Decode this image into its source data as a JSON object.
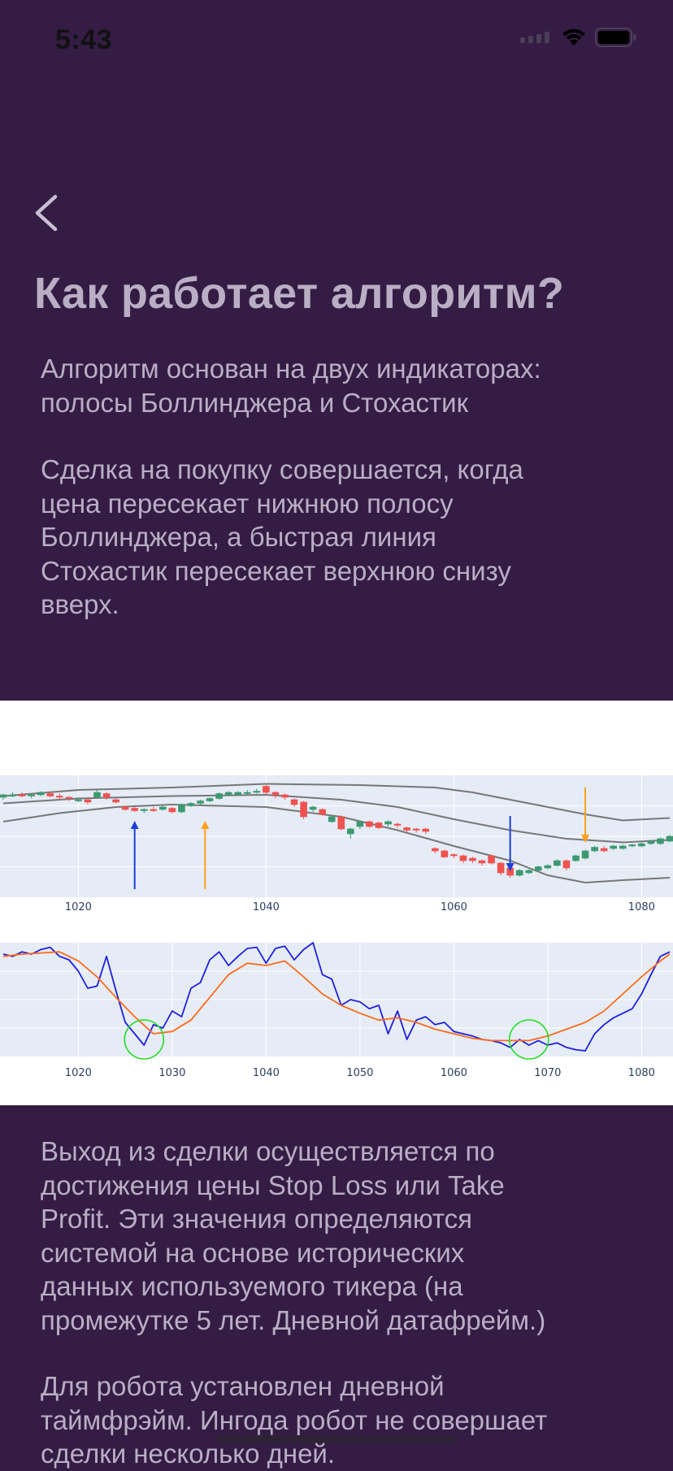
{
  "status_bar": {
    "time": "5:43",
    "icons": [
      "signal-icon",
      "wifi-icon",
      "battery-icon"
    ]
  },
  "nav": {
    "back_icon": "chevron-left-icon"
  },
  "page": {
    "title": "Как работает алгоритм?",
    "paragraph_1": "Алгоритм основан на двух индикаторах:\nполосы Боллинджера и Стохастик",
    "paragraph_2": "Сделка на покупку совершается, когда\nцена пересекает нижнюю полосу\nБоллинджера, а быстрая линия\nСтохастик пересекает верхнюю снизу\nвверх.",
    "paragraph_3": "Выход из сделки осуществляется по\nдостижения цены Stop Loss или Take\nProfit. Эти значения определяются\nсистемой на основе исторических\nданных используемого тикера (на\nпромежутке 5 лет. Дневной датафрейм.)",
    "paragraph_4": "Для робота установлен дневной\nтаймфрэйм. Ингода робот не совершает\nсделки несколько дней."
  },
  "colors": {
    "background": "#341c44",
    "text": "#b9aec4",
    "plot_bg": "#e5ecf6",
    "candle_up": "#3d9970",
    "candle_down": "#ef5350",
    "band": "#777777",
    "stoch_fast": "#1f1fe0",
    "stoch_slow": "#ff6a1a",
    "buy_arrow": "#1f3fd8",
    "sell_arrow": "#ff9f1a",
    "cross_marker": "#22dd22"
  },
  "chart_data": [
    {
      "type": "candlestick",
      "title": "",
      "x_ticks": [
        1020,
        1040,
        1060,
        1080
      ],
      "xlim": [
        1012,
        1083
      ],
      "ylim": [
        0,
        100
      ],
      "upper_band": [
        [
          1012,
          83
        ],
        [
          1020,
          88
        ],
        [
          1030,
          90
        ],
        [
          1040,
          93
        ],
        [
          1050,
          92
        ],
        [
          1058,
          90
        ],
        [
          1062,
          86
        ],
        [
          1066,
          80
        ],
        [
          1070,
          74
        ],
        [
          1074,
          68
        ],
        [
          1078,
          63
        ],
        [
          1083,
          65
        ]
      ],
      "middle_band": [
        [
          1012,
          77
        ],
        [
          1020,
          81
        ],
        [
          1030,
          83
        ],
        [
          1040,
          84
        ],
        [
          1048,
          80
        ],
        [
          1054,
          74
        ],
        [
          1060,
          64
        ],
        [
          1066,
          55
        ],
        [
          1072,
          48
        ],
        [
          1078,
          45
        ],
        [
          1083,
          47
        ]
      ],
      "lower_band": [
        [
          1012,
          62
        ],
        [
          1018,
          69
        ],
        [
          1024,
          74
        ],
        [
          1030,
          76
        ],
        [
          1040,
          74
        ],
        [
          1048,
          66
        ],
        [
          1054,
          55
        ],
        [
          1060,
          42
        ],
        [
          1066,
          30
        ],
        [
          1070,
          18
        ],
        [
          1074,
          12
        ],
        [
          1078,
          14
        ],
        [
          1083,
          16
        ]
      ],
      "candles": [
        {
          "x": 1012,
          "o": 82,
          "c": 84,
          "h": 85,
          "l": 80
        },
        {
          "x": 1013,
          "o": 83,
          "c": 84,
          "h": 86,
          "l": 82
        },
        {
          "x": 1014,
          "o": 84,
          "c": 83,
          "h": 86,
          "l": 82
        },
        {
          "x": 1015,
          "o": 83,
          "c": 84,
          "h": 85,
          "l": 81
        },
        {
          "x": 1016,
          "o": 84,
          "c": 86,
          "h": 87,
          "l": 83
        },
        {
          "x": 1017,
          "o": 85,
          "c": 83,
          "h": 87,
          "l": 82
        },
        {
          "x": 1018,
          "o": 83,
          "c": 82,
          "h": 85,
          "l": 80
        },
        {
          "x": 1019,
          "o": 82,
          "c": 81,
          "h": 83,
          "l": 79
        },
        {
          "x": 1020,
          "o": 80,
          "c": 80,
          "h": 82,
          "l": 78
        },
        {
          "x": 1021,
          "o": 80,
          "c": 78,
          "h": 81,
          "l": 76
        },
        {
          "x": 1022,
          "o": 82,
          "c": 86,
          "h": 88,
          "l": 81
        },
        {
          "x": 1023,
          "o": 85,
          "c": 82,
          "h": 86,
          "l": 80
        },
        {
          "x": 1024,
          "o": 80,
          "c": 78,
          "h": 81,
          "l": 77
        },
        {
          "x": 1025,
          "o": 74,
          "c": 72,
          "h": 75,
          "l": 71
        },
        {
          "x": 1026,
          "o": 73,
          "c": 71,
          "h": 74,
          "l": 70
        },
        {
          "x": 1027,
          "o": 71,
          "c": 72,
          "h": 73,
          "l": 69
        },
        {
          "x": 1028,
          "o": 72,
          "c": 71,
          "h": 74,
          "l": 70
        },
        {
          "x": 1029,
          "o": 72,
          "c": 74,
          "h": 75,
          "l": 71
        },
        {
          "x": 1030,
          "o": 73,
          "c": 70,
          "h": 74,
          "l": 69
        },
        {
          "x": 1031,
          "o": 70,
          "c": 76,
          "h": 77,
          "l": 69
        },
        {
          "x": 1032,
          "o": 75,
          "c": 77,
          "h": 78,
          "l": 74
        },
        {
          "x": 1033,
          "o": 77,
          "c": 79,
          "h": 80,
          "l": 76
        },
        {
          "x": 1034,
          "o": 79,
          "c": 81,
          "h": 82,
          "l": 78
        },
        {
          "x": 1035,
          "o": 81,
          "c": 85,
          "h": 86,
          "l": 80
        },
        {
          "x": 1036,
          "o": 84,
          "c": 86,
          "h": 87,
          "l": 83
        },
        {
          "x": 1037,
          "o": 84,
          "c": 86,
          "h": 87,
          "l": 83
        },
        {
          "x": 1038,
          "o": 85,
          "c": 86,
          "h": 88,
          "l": 84
        },
        {
          "x": 1039,
          "o": 86,
          "c": 87,
          "h": 89,
          "l": 85
        },
        {
          "x": 1040,
          "o": 91,
          "c": 86,
          "h": 92,
          "l": 84
        },
        {
          "x": 1041,
          "o": 86,
          "c": 84,
          "h": 87,
          "l": 81
        },
        {
          "x": 1042,
          "o": 84,
          "c": 82,
          "h": 85,
          "l": 80
        },
        {
          "x": 1043,
          "o": 80,
          "c": 76,
          "h": 81,
          "l": 74
        },
        {
          "x": 1044,
          "o": 78,
          "c": 66,
          "h": 79,
          "l": 64
        },
        {
          "x": 1045,
          "o": 72,
          "c": 74,
          "h": 75,
          "l": 70
        },
        {
          "x": 1046,
          "o": 72,
          "c": 68,
          "h": 73,
          "l": 67
        },
        {
          "x": 1047,
          "o": 62,
          "c": 66,
          "h": 67,
          "l": 61
        },
        {
          "x": 1048,
          "o": 66,
          "c": 56,
          "h": 67,
          "l": 55
        },
        {
          "x": 1049,
          "o": 52,
          "c": 56,
          "h": 57,
          "l": 48
        },
        {
          "x": 1050,
          "o": 58,
          "c": 62,
          "h": 63,
          "l": 56
        },
        {
          "x": 1051,
          "o": 62,
          "c": 58,
          "h": 63,
          "l": 57
        },
        {
          "x": 1052,
          "o": 61,
          "c": 57,
          "h": 62,
          "l": 56
        },
        {
          "x": 1053,
          "o": 60,
          "c": 62,
          "h": 63,
          "l": 58
        },
        {
          "x": 1054,
          "o": 60,
          "c": 59,
          "h": 61,
          "l": 57
        },
        {
          "x": 1055,
          "o": 57,
          "c": 55,
          "h": 58,
          "l": 53
        },
        {
          "x": 1056,
          "o": 56,
          "c": 55,
          "h": 57,
          "l": 53
        },
        {
          "x": 1057,
          "o": 56,
          "c": 54,
          "h": 57,
          "l": 52
        },
        {
          "x": 1058,
          "o": 40,
          "c": 38,
          "h": 41,
          "l": 36
        },
        {
          "x": 1059,
          "o": 38,
          "c": 33,
          "h": 39,
          "l": 32
        },
        {
          "x": 1060,
          "o": 35,
          "c": 34,
          "h": 36,
          "l": 32
        },
        {
          "x": 1061,
          "o": 34,
          "c": 30,
          "h": 35,
          "l": 28
        },
        {
          "x": 1062,
          "o": 32,
          "c": 30,
          "h": 33,
          "l": 28
        },
        {
          "x": 1063,
          "o": 30,
          "c": 28,
          "h": 31,
          "l": 26
        },
        {
          "x": 1064,
          "o": 34,
          "c": 28,
          "h": 35,
          "l": 27
        },
        {
          "x": 1065,
          "o": 28,
          "c": 20,
          "h": 29,
          "l": 18
        },
        {
          "x": 1066,
          "o": 24,
          "c": 18,
          "h": 25,
          "l": 16
        },
        {
          "x": 1067,
          "o": 18,
          "c": 22,
          "h": 23,
          "l": 17
        },
        {
          "x": 1068,
          "o": 20,
          "c": 22,
          "h": 23,
          "l": 19
        },
        {
          "x": 1069,
          "o": 22,
          "c": 25,
          "h": 26,
          "l": 21
        },
        {
          "x": 1070,
          "o": 24,
          "c": 26,
          "h": 27,
          "l": 23
        },
        {
          "x": 1071,
          "o": 26,
          "c": 30,
          "h": 31,
          "l": 25
        },
        {
          "x": 1072,
          "o": 30,
          "c": 24,
          "h": 31,
          "l": 22
        },
        {
          "x": 1073,
          "o": 30,
          "c": 34,
          "h": 35,
          "l": 29
        },
        {
          "x": 1074,
          "o": 32,
          "c": 38,
          "h": 39,
          "l": 31
        },
        {
          "x": 1075,
          "o": 38,
          "c": 41,
          "h": 42,
          "l": 37
        },
        {
          "x": 1076,
          "o": 40,
          "c": 38,
          "h": 42,
          "l": 37
        },
        {
          "x": 1077,
          "o": 40,
          "c": 42,
          "h": 43,
          "l": 39
        },
        {
          "x": 1078,
          "o": 40,
          "c": 42,
          "h": 43,
          "l": 39
        },
        {
          "x": 1079,
          "o": 42,
          "c": 43,
          "h": 44,
          "l": 41
        },
        {
          "x": 1080,
          "o": 42,
          "c": 44,
          "h": 45,
          "l": 41
        },
        {
          "x": 1081,
          "o": 44,
          "c": 46,
          "h": 47,
          "l": 43
        },
        {
          "x": 1082,
          "o": 44,
          "c": 48,
          "h": 49,
          "l": 43
        },
        {
          "x": 1083,
          "o": 46,
          "c": 50,
          "h": 51,
          "l": 45
        }
      ],
      "buy_arrows": [
        1026,
        1066
      ],
      "sell_arrows": [
        1033.5,
        1074
      ]
    },
    {
      "type": "line",
      "title": "",
      "x_ticks": [
        1020,
        1030,
        1040,
        1050,
        1060,
        1070,
        1080
      ],
      "xlim": [
        1012,
        1083
      ],
      "ylim": [
        0,
        100
      ],
      "series": [
        {
          "name": "",
          "x": [
            1012,
            1013,
            1014,
            1015,
            1016,
            1017,
            1018,
            1019,
            1020,
            1021,
            1022,
            1023,
            1024,
            1025,
            1026,
            1027,
            1028,
            1029,
            1030,
            1031,
            1032,
            1033,
            1034,
            1035,
            1036,
            1037,
            1038,
            1039,
            1040,
            1041,
            1042,
            1043,
            1044,
            1045,
            1046,
            1047,
            1048,
            1049,
            1050,
            1051,
            1052,
            1053,
            1054,
            1055,
            1056,
            1057,
            1058,
            1059,
            1060,
            1061,
            1062,
            1063,
            1064,
            1065,
            1066,
            1067,
            1068,
            1069,
            1070,
            1071,
            1072,
            1073,
            1074,
            1075,
            1076,
            1077,
            1078,
            1079,
            1080,
            1081,
            1082,
            1083
          ],
          "values": [
            90,
            88,
            92,
            90,
            94,
            96,
            88,
            85,
            75,
            60,
            62,
            88,
            58,
            30,
            20,
            10,
            28,
            25,
            40,
            35,
            60,
            65,
            85,
            92,
            80,
            88,
            95,
            96,
            82,
            95,
            97,
            85,
            94,
            100,
            72,
            68,
            45,
            50,
            48,
            42,
            45,
            20,
            40,
            15,
            32,
            35,
            28,
            30,
            22,
            20,
            18,
            15,
            14,
            12,
            8,
            15,
            10,
            14,
            10,
            12,
            8,
            6,
            5,
            20,
            28,
            34,
            38,
            42,
            55,
            72,
            88,
            92
          ]
        },
        {
          "name": "",
          "x": [
            1012,
            1014,
            1016,
            1018,
            1020,
            1022,
            1024,
            1026,
            1028,
            1030,
            1032,
            1034,
            1036,
            1038,
            1040,
            1042,
            1044,
            1046,
            1048,
            1050,
            1052,
            1054,
            1056,
            1058,
            1060,
            1062,
            1064,
            1066,
            1068,
            1070,
            1072,
            1074,
            1076,
            1078,
            1080,
            1082,
            1083
          ],
          "values": [
            88,
            90,
            91,
            92,
            84,
            70,
            52,
            35,
            20,
            22,
            32,
            52,
            72,
            82,
            80,
            84,
            70,
            55,
            45,
            38,
            32,
            34,
            30,
            24,
            20,
            16,
            14,
            14,
            14,
            18,
            24,
            30,
            40,
            55,
            70,
            84,
            90
          ]
        }
      ],
      "annotations": {
        "cross_markers_x": [
          1027,
          1068
        ]
      }
    }
  ]
}
